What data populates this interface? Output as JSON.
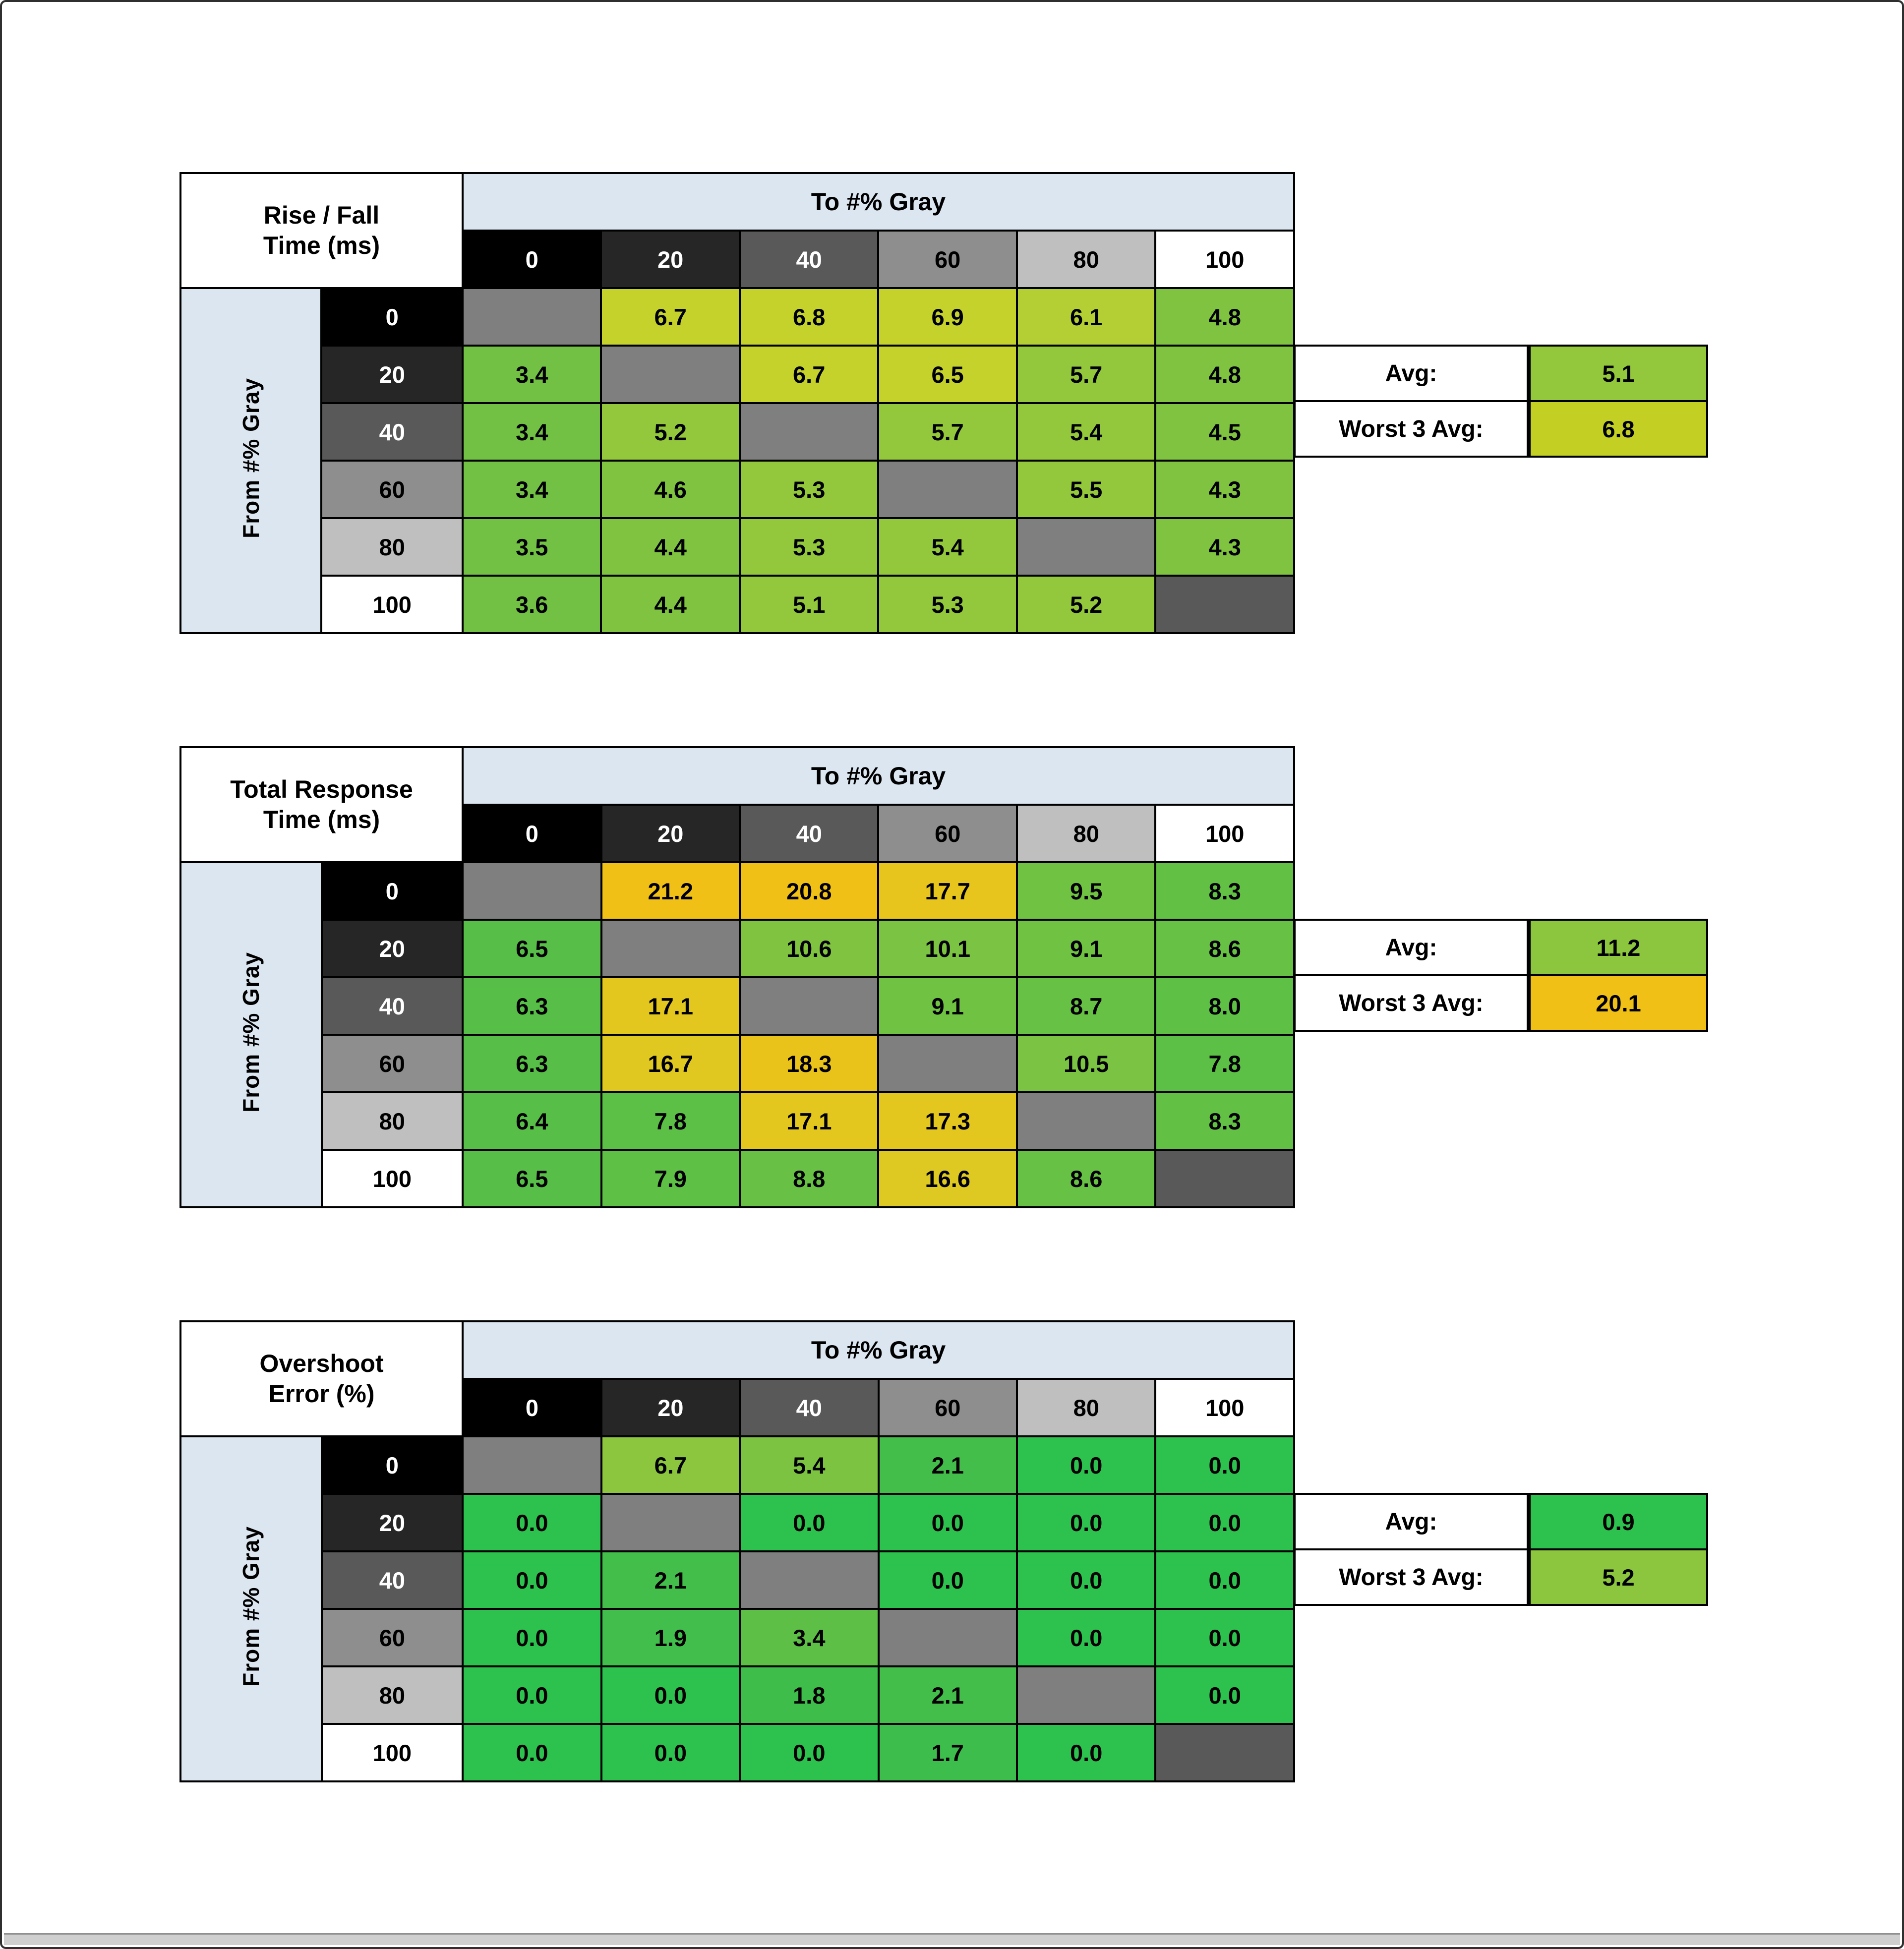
{
  "page": {
    "background": "#ffffff",
    "frame_border": "#2f2f2f",
    "axis_band_color": "#dce6f1",
    "diagonal_color": "#7f7f7f",
    "diagonal_last_color": "#595959"
  },
  "gray_headers": [
    {
      "label": "0",
      "bg": "#000000",
      "text": "#ffffff"
    },
    {
      "label": "20",
      "bg": "#262626",
      "text": "#ffffff"
    },
    {
      "label": "40",
      "bg": "#595959",
      "text": "#ffffff"
    },
    {
      "label": "60",
      "bg": "#8e8e8e",
      "text": "#000000"
    },
    {
      "label": "80",
      "bg": "#bfbfbf",
      "text": "#000000"
    },
    {
      "label": "100",
      "bg": "#ffffff",
      "text": "#000000"
    }
  ],
  "chart_data": [
    {
      "id": "rise-fall",
      "type": "heatmap",
      "title_line1": "Rise / Fall",
      "title_line2": "Time (ms)",
      "xlabel": "To #% Gray",
      "ylabel": "From #% Gray",
      "x_ticks": [
        "0",
        "20",
        "40",
        "60",
        "80",
        "100"
      ],
      "y_ticks": [
        "0",
        "20",
        "40",
        "60",
        "80",
        "100"
      ],
      "values": [
        [
          null,
          6.7,
          6.8,
          6.9,
          6.1,
          4.8
        ],
        [
          3.4,
          null,
          6.7,
          6.5,
          5.7,
          4.8
        ],
        [
          3.4,
          5.2,
          null,
          5.7,
          5.4,
          4.5
        ],
        [
          3.4,
          4.6,
          5.3,
          null,
          5.5,
          4.3
        ],
        [
          3.5,
          4.4,
          5.3,
          5.4,
          null,
          4.3
        ],
        [
          3.6,
          4.4,
          5.1,
          5.3,
          5.2,
          null
        ]
      ],
      "cell_colors": [
        [
          "#7f7f7f",
          "#c6d22c",
          "#c6d22c",
          "#c6d22c",
          "#b3cf33",
          "#7fc341"
        ],
        [
          "#72c144",
          "#7f7f7f",
          "#c6d22c",
          "#c6d22c",
          "#94c83c",
          "#7fc341"
        ],
        [
          "#72c144",
          "#94c83c",
          "#7f7f7f",
          "#94c83c",
          "#94c83c",
          "#7fc341"
        ],
        [
          "#72c144",
          "#7fc341",
          "#94c83c",
          "#7f7f7f",
          "#94c83c",
          "#7fc341"
        ],
        [
          "#72c144",
          "#7fc341",
          "#94c83c",
          "#94c83c",
          "#7f7f7f",
          "#7fc341"
        ],
        [
          "#72c144",
          "#7fc341",
          "#94c83c",
          "#94c83c",
          "#94c83c",
          "#595959"
        ]
      ],
      "summary": {
        "avg_label": "Avg:",
        "avg": 5.1,
        "avg_color": "#94c83c",
        "worst_label": "Worst 3 Avg:",
        "worst": 6.8,
        "worst_color": "#c4cf24"
      }
    },
    {
      "id": "total-response",
      "type": "heatmap",
      "title_line1": "Total Response",
      "title_line2": "Time (ms)",
      "xlabel": "To #% Gray",
      "ylabel": "From #% Gray",
      "x_ticks": [
        "0",
        "20",
        "40",
        "60",
        "80",
        "100"
      ],
      "y_ticks": [
        "0",
        "20",
        "40",
        "60",
        "80",
        "100"
      ],
      "values": [
        [
          null,
          21.2,
          20.8,
          17.7,
          9.5,
          8.3
        ],
        [
          6.5,
          null,
          10.6,
          10.1,
          9.1,
          8.6
        ],
        [
          6.3,
          17.1,
          null,
          9.1,
          8.7,
          8.0
        ],
        [
          6.3,
          16.7,
          18.3,
          null,
          10.5,
          7.8
        ],
        [
          6.4,
          7.8,
          17.1,
          17.3,
          null,
          8.3
        ],
        [
          6.5,
          7.9,
          8.8,
          16.6,
          8.6,
          null
        ]
      ],
      "cell_colors": [
        [
          "#7f7f7f",
          "#f0c016",
          "#f0c016",
          "#e7c51c",
          "#70c243",
          "#62c145"
        ],
        [
          "#57bf47",
          "#7f7f7f",
          "#7fc341",
          "#7bc342",
          "#70c243",
          "#66c144"
        ],
        [
          "#57bf47",
          "#e4c71e",
          "#7f7f7f",
          "#70c243",
          "#66c144",
          "#5fc046"
        ],
        [
          "#57bf47",
          "#e0c821",
          "#eac31a",
          "#7f7f7f",
          "#7bc342",
          "#5dc046"
        ],
        [
          "#57bf47",
          "#5dc046",
          "#e4c71e",
          "#e4c71e",
          "#7f7f7f",
          "#62c145"
        ],
        [
          "#57bf47",
          "#5fc046",
          "#68c144",
          "#ddc922",
          "#66c144",
          "#595959"
        ]
      ],
      "summary": {
        "avg_label": "Avg:",
        "avg": 11.2,
        "avg_color": "#8cc63f",
        "worst_label": "Worst 3 Avg:",
        "worst": 20.1,
        "worst_color": "#f0c016"
      }
    },
    {
      "id": "overshoot",
      "type": "heatmap",
      "title_line1": "Overshoot",
      "title_line2": "Error (%)",
      "xlabel": "To #% Gray",
      "ylabel": "From #% Gray",
      "x_ticks": [
        "0",
        "20",
        "40",
        "60",
        "80",
        "100"
      ],
      "y_ticks": [
        "0",
        "20",
        "40",
        "60",
        "80",
        "100"
      ],
      "values": [
        [
          null,
          6.7,
          5.4,
          2.1,
          0.0,
          0.0
        ],
        [
          0.0,
          null,
          0.0,
          0.0,
          0.0,
          0.0
        ],
        [
          0.0,
          2.1,
          null,
          0.0,
          0.0,
          0.0
        ],
        [
          0.0,
          1.9,
          3.4,
          null,
          0.0,
          0.0
        ],
        [
          0.0,
          0.0,
          1.8,
          2.1,
          null,
          0.0
        ],
        [
          0.0,
          0.0,
          0.0,
          1.7,
          0.0,
          null
        ]
      ],
      "cell_colors": [
        [
          "#7f7f7f",
          "#8cc63f",
          "#7cc341",
          "#44be4a",
          "#2dc14e",
          "#2dc14e"
        ],
        [
          "#2dc14e",
          "#7f7f7f",
          "#2dc14e",
          "#2dc14e",
          "#2dc14e",
          "#2dc14e"
        ],
        [
          "#2dc14e",
          "#44be4a",
          "#7f7f7f",
          "#2dc14e",
          "#2dc14e",
          "#2dc14e"
        ],
        [
          "#2dc14e",
          "#41be4b",
          "#5dbf46",
          "#7f7f7f",
          "#2dc14e",
          "#2dc14e"
        ],
        [
          "#2dc14e",
          "#2dc14e",
          "#3fbd4b",
          "#44be4a",
          "#7f7f7f",
          "#2dc14e"
        ],
        [
          "#2dc14e",
          "#2dc14e",
          "#2dc14e",
          "#3dbd4b",
          "#2dc14e",
          "#595959"
        ]
      ],
      "summary": {
        "avg_label": "Avg:",
        "avg": 0.9,
        "avg_color": "#2dc14e",
        "worst_label": "Worst 3 Avg:",
        "worst": 5.2,
        "worst_color": "#8cc63f"
      }
    }
  ]
}
